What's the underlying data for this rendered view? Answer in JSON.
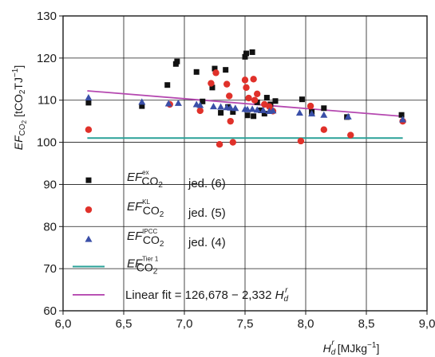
{
  "chart_data": {
    "type": "scatter",
    "xlabel_main": "H",
    "xlabel_sub": "d",
    "xlabel_sup": "r",
    "xlabel_unit": "[MJkg",
    "xlabel_unit_sup": "−1",
    "xlabel_unit_end": "]",
    "ylabel_main": "EF",
    "ylabel_sub": "CO",
    "ylabel_sub2": "2",
    "ylabel_unit": "[tCO",
    "ylabel_unit_sub": "2",
    "ylabel_unit_mid": "TJ",
    "ylabel_unit_sup": "−1",
    "ylabel_unit_end": "]",
    "xlim": [
      6.0,
      9.0
    ],
    "ylim": [
      60,
      130
    ],
    "xticks": [
      "6,0",
      "6,5",
      "7,0",
      "7,5",
      "8,0",
      "8,5",
      "9,0"
    ],
    "yticks": [
      "60",
      "70",
      "80",
      "90",
      "100",
      "110",
      "120",
      "130"
    ],
    "grid": true,
    "legend_position": "bottom-left",
    "colors": {
      "ex": "#111111",
      "kl": "#e0312a",
      "ipcc": "#3a4fa8",
      "tier1": "#2aa198",
      "fit": "#b548b0"
    },
    "series": [
      {
        "key": "ex",
        "marker": "square",
        "legend_main": "EF",
        "legend_sub": "CO",
        "legend_sub2": "2",
        "legend_sup": "ex",
        "legend_eq": "jed. (6)",
        "points": [
          [
            6.21,
            109.4
          ],
          [
            6.65,
            108.6
          ],
          [
            6.86,
            113.6
          ],
          [
            6.93,
            118.6
          ],
          [
            6.94,
            119.2
          ],
          [
            7.1,
            116.7
          ],
          [
            7.15,
            109.7
          ],
          [
            7.23,
            113.0
          ],
          [
            7.25,
            117.5
          ],
          [
            7.3,
            107.0
          ],
          [
            7.34,
            117.2
          ],
          [
            7.36,
            108.4
          ],
          [
            7.4,
            107.2
          ],
          [
            7.5,
            120.3
          ],
          [
            7.51,
            121.1
          ],
          [
            7.52,
            106.4
          ],
          [
            7.56,
            121.4
          ],
          [
            7.57,
            106.2
          ],
          [
            7.6,
            109.5
          ],
          [
            7.63,
            107.6
          ],
          [
            7.66,
            106.8
          ],
          [
            7.68,
            110.6
          ],
          [
            7.71,
            109.0
          ],
          [
            7.75,
            109.8
          ],
          [
            7.97,
            110.2
          ],
          [
            8.05,
            107.2
          ],
          [
            8.15,
            108.1
          ],
          [
            8.34,
            106.0
          ],
          [
            8.79,
            106.5
          ]
        ]
      },
      {
        "key": "kl",
        "marker": "circle",
        "legend_main": "EF",
        "legend_sub": "CO",
        "legend_sub2": "2",
        "legend_sup": "KL",
        "legend_eq": "jed. (5)",
        "points": [
          [
            6.21,
            103.0
          ],
          [
            6.88,
            109.0
          ],
          [
            7.13,
            107.5
          ],
          [
            7.22,
            114.0
          ],
          [
            7.26,
            116.5
          ],
          [
            7.29,
            99.5
          ],
          [
            7.35,
            113.8
          ],
          [
            7.37,
            111.0
          ],
          [
            7.38,
            105.0
          ],
          [
            7.4,
            100.0
          ],
          [
            7.5,
            114.8
          ],
          [
            7.51,
            113.0
          ],
          [
            7.53,
            110.5
          ],
          [
            7.57,
            115.0
          ],
          [
            7.58,
            110.0
          ],
          [
            7.6,
            111.5
          ],
          [
            7.66,
            109.0
          ],
          [
            7.7,
            108.5
          ],
          [
            7.73,
            107.4
          ],
          [
            7.96,
            100.3
          ],
          [
            8.04,
            108.6
          ],
          [
            8.15,
            103.0
          ],
          [
            8.37,
            101.7
          ],
          [
            8.8,
            105.0
          ]
        ]
      },
      {
        "key": "ipcc",
        "marker": "triangle",
        "legend_main": "EF",
        "legend_sub": "CO",
        "legend_sub2": "2",
        "legend_sup": "IPCC",
        "legend_eq": "jed. (4)",
        "points": [
          [
            6.21,
            110.6
          ],
          [
            6.65,
            109.6
          ],
          [
            6.87,
            109.2
          ],
          [
            6.95,
            109.3
          ],
          [
            7.1,
            109.0
          ],
          [
            7.13,
            108.8
          ],
          [
            7.24,
            108.5
          ],
          [
            7.3,
            108.4
          ],
          [
            7.35,
            108.3
          ],
          [
            7.38,
            108.2
          ],
          [
            7.42,
            108.1
          ],
          [
            7.5,
            107.9
          ],
          [
            7.52,
            107.8
          ],
          [
            7.56,
            107.9
          ],
          [
            7.6,
            107.7
          ],
          [
            7.65,
            107.6
          ],
          [
            7.7,
            107.4
          ],
          [
            7.73,
            107.5
          ],
          [
            7.95,
            107.0
          ],
          [
            8.05,
            106.8
          ],
          [
            8.15,
            106.5
          ],
          [
            8.35,
            106.1
          ],
          [
            8.8,
            105.4
          ]
        ]
      }
    ],
    "tier1": {
      "legend_main": "EF",
      "legend_sub": "CO",
      "legend_sub2": "2",
      "legend_sup": "Tier 1",
      "value": 101.0,
      "x_range": [
        6.2,
        8.8
      ]
    },
    "fit": {
      "legend_text": "Linear fit = 126,678 − 2,332 ",
      "legend_var": "H",
      "legend_var_sub": "d",
      "legend_var_sup": "r",
      "intercept": 126.678,
      "slope": -2.332,
      "x_range": [
        6.2,
        8.8
      ]
    }
  }
}
